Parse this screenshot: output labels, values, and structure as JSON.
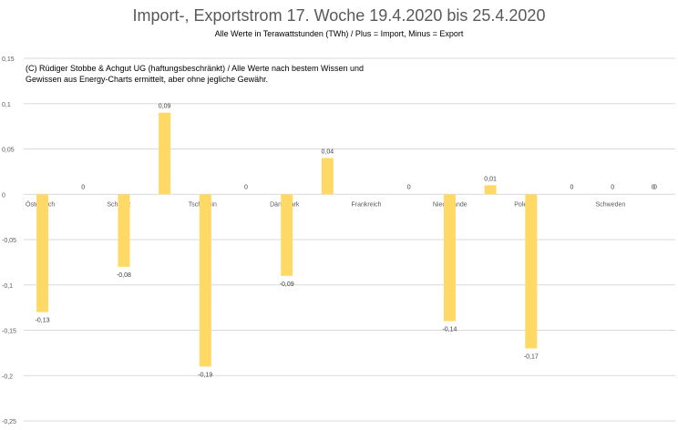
{
  "chart_data": {
    "type": "bar",
    "title": "Import-, Exportstrom 17. Woche 19.4.2020 bis 25.4.2020",
    "subtitle": "Alle Werte in Terawattstunden (TWh) / Plus = Import, Minus = Export",
    "annotation": [
      "(C) Rüdiger Stobbe & Achgut UG (haftungsbeschränkt) / Alle Werte nach bestem Wissen und",
      "Gewissen aus Energy-Charts ermittelt, aber ohne jegliche Gewähr."
    ],
    "categories": [
      "Österreich",
      "Schweiz",
      "Tschechin",
      "Dänemark",
      "Frankreich",
      "Niederlande",
      "Polen",
      "Schweden"
    ],
    "series": [
      {
        "name": "",
        "color": "#FFD966",
        "values": [
          -0.13,
          -0.08,
          -0.19,
          -0.09,
          0,
          -0.14,
          -0.17,
          0
        ]
      },
      {
        "name": "",
        "color": "#FFD966",
        "values": [
          0,
          0.09,
          0,
          0.04,
          0,
          0.01,
          0,
          0
        ]
      }
    ],
    "extra_zero_labels": [
      "0"
    ],
    "data_labels": [
      [
        "-0,13",
        "-0,08",
        "-0,19",
        "-0,09",
        "0",
        "-0,14",
        "-0,17",
        "0"
      ],
      [
        "0",
        "0,09",
        "0",
        "0,04",
        "0",
        "0,01",
        "0",
        "0"
      ]
    ],
    "y_ticks": [
      "0,15",
      "0,1",
      "0,05",
      "0",
      "-0,05",
      "-0,1",
      "-0,15",
      "-0,2",
      "-0,25"
    ],
    "ylim": [
      -0.25,
      0.15
    ],
    "grid": true,
    "legend": "none"
  }
}
